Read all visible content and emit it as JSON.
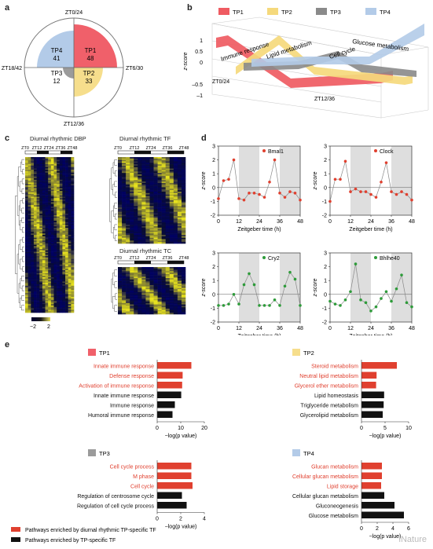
{
  "panels": {
    "a": "a",
    "b": "b",
    "c": "c",
    "d": "d",
    "e": "e"
  },
  "panel_a": {
    "clock_labels": {
      "top": "ZT0/24",
      "right": "ZT6/30",
      "bottom": "ZT12/36",
      "left": "ZT18/42"
    },
    "sectors": [
      {
        "name": "TP1",
        "value": "48",
        "color": "#f0606a"
      },
      {
        "name": "TP2",
        "value": "33",
        "color": "#f6de8c"
      },
      {
        "name": "TP3",
        "value": "12",
        "color": "#9b9b9b"
      },
      {
        "name": "TP4",
        "value": "41",
        "color": "#b3cbe8"
      }
    ]
  },
  "panel_b": {
    "legend": [
      {
        "name": "TP1",
        "color": "#ef5b62"
      },
      {
        "name": "TP2",
        "color": "#f5d97c"
      },
      {
        "name": "TP3",
        "color": "#8a8a8a"
      },
      {
        "name": "TP4",
        "color": "#b3cbe8"
      }
    ],
    "ylabel": "z-score",
    "yticks": [
      "1",
      "0.5",
      "0",
      "–0.5",
      "–1"
    ],
    "x_labels": [
      "ZT0/24",
      "ZT12/36"
    ],
    "ribbon_labels": [
      "Immune response",
      "Lipid metabolism",
      "Cell cycle",
      "Glucose metabolism"
    ]
  },
  "panel_c": {
    "heatmaps": [
      {
        "title": "Diurnal rhythmic DBP",
        "zts": [
          "ZT0",
          "ZT12",
          "ZT24",
          "ZT36",
          "ZT48"
        ]
      },
      {
        "title": "Diurnal rhythmic TF",
        "zts": [
          "ZT0",
          "ZT12",
          "ZT24",
          "ZT36",
          "ZT48"
        ]
      },
      {
        "title": "Diurnal rhythmic TC",
        "zts": [
          "ZT0",
          "ZT12",
          "ZT24",
          "ZT36",
          "ZT48"
        ]
      }
    ],
    "colorbar": {
      "min": "−2",
      "max": "2"
    }
  },
  "chart_data": [
    {
      "type": "line",
      "title": "Bmal1",
      "color": "#e0402f",
      "xlabel": "Zeitgeber time (h)",
      "ylabel": "z-score",
      "x": [
        0,
        3,
        6,
        9,
        12,
        15,
        18,
        21,
        24,
        27,
        30,
        33,
        36,
        39,
        42,
        45,
        48
      ],
      "y": [
        -0.8,
        0.5,
        0.6,
        2.0,
        -0.8,
        -0.9,
        -0.4,
        -0.4,
        -0.5,
        -0.7,
        0.4,
        2.0,
        -0.4,
        -0.7,
        -0.3,
        -0.4,
        -0.9
      ],
      "xlim": [
        0,
        48
      ],
      "ylim": [
        -2,
        3
      ],
      "xticks": [
        0,
        12,
        24,
        36,
        48
      ],
      "yticks": [
        -2,
        -1,
        0,
        1,
        2,
        3
      ],
      "shaded": [
        [
          12,
          24
        ],
        [
          36,
          48
        ]
      ]
    },
    {
      "type": "line",
      "title": "Clock",
      "color": "#e0402f",
      "xlabel": "Zeitgeber time (h)",
      "ylabel": "z-score",
      "x": [
        0,
        3,
        6,
        9,
        12,
        15,
        18,
        21,
        24,
        27,
        30,
        33,
        36,
        39,
        42,
        45,
        48
      ],
      "y": [
        -1.0,
        0.6,
        0.6,
        1.9,
        -0.3,
        -0.1,
        -0.3,
        -0.3,
        -0.5,
        -0.7,
        0.4,
        1.8,
        -0.3,
        -0.5,
        -0.3,
        -0.5,
        -0.9
      ],
      "xlim": [
        0,
        48
      ],
      "ylim": [
        -2,
        3
      ],
      "xticks": [
        0,
        12,
        24,
        36,
        48
      ],
      "yticks": [
        -2,
        -1,
        0,
        1,
        2,
        3
      ],
      "shaded": [
        [
          12,
          24
        ],
        [
          36,
          48
        ]
      ]
    },
    {
      "type": "line",
      "title": "Cry2",
      "color": "#2e9b3a",
      "xlabel": "Zeitgeber time (h)",
      "ylabel": "z-score",
      "x": [
        0,
        3,
        6,
        9,
        12,
        15,
        18,
        21,
        24,
        27,
        30,
        33,
        36,
        39,
        42,
        45,
        48
      ],
      "y": [
        -0.8,
        -0.8,
        -0.7,
        0.0,
        -0.7,
        0.7,
        1.5,
        0.7,
        -0.8,
        -0.8,
        -0.8,
        -0.4,
        -0.8,
        0.6,
        1.6,
        1.1,
        -0.8
      ],
      "xlim": [
        0,
        48
      ],
      "ylim": [
        -2,
        3
      ],
      "xticks": [
        0,
        12,
        24,
        36,
        48
      ],
      "yticks": [
        -2,
        -1,
        0,
        1,
        2,
        3
      ],
      "shaded": [
        [
          12,
          24
        ],
        [
          36,
          48
        ]
      ]
    },
    {
      "type": "line",
      "title": "Bhlhe40",
      "color": "#2e9b3a",
      "xlabel": "Zeitgeber time (h)",
      "ylabel": "z-score",
      "x": [
        0,
        3,
        6,
        9,
        12,
        15,
        18,
        21,
        24,
        27,
        30,
        33,
        36,
        39,
        42,
        45,
        48
      ],
      "y": [
        -0.5,
        -0.7,
        -0.8,
        -0.4,
        0.2,
        2.2,
        -0.4,
        -0.6,
        -1.2,
        -0.9,
        -0.3,
        0.2,
        -0.5,
        0.4,
        1.4,
        -0.6,
        -0.9
      ],
      "xlim": [
        0,
        48
      ],
      "ylim": [
        -2,
        3
      ],
      "xticks": [
        0,
        12,
        24,
        36,
        48
      ],
      "yticks": [
        -2,
        -1,
        0,
        1,
        2,
        3
      ],
      "shaded": [
        [
          12,
          24
        ],
        [
          36,
          48
        ]
      ]
    },
    {
      "type": "bar",
      "title": "TP1",
      "title_color": "#f0606a",
      "orientation": "horizontal",
      "xlabel": "−log(p value)",
      "categories": [
        "Innate immune response",
        "Defense response",
        "Activation of immune response",
        "Innate immune response",
        "Immune response",
        "Humoral immune response"
      ],
      "values": [
        14.5,
        10.8,
        10.6,
        10.2,
        7.5,
        6.5
      ],
      "enriched_by": [
        "TF",
        "TF",
        "TF",
        "TP",
        "TP",
        "TP"
      ],
      "xlim": [
        0,
        20
      ],
      "xticks": [
        0,
        10,
        20
      ]
    },
    {
      "type": "bar",
      "title": "TP2",
      "title_color": "#f6de8c",
      "orientation": "horizontal",
      "xlabel": "−log(p value)",
      "categories": [
        "Steroid metabolism",
        "Neutral lipid metabolism",
        "Glycerol ether metabolism",
        "Lipid homeostasis",
        "Triglyceride metabolism",
        "Glycerolipid metabolism"
      ],
      "values": [
        7.5,
        3.2,
        3.1,
        4.8,
        4.7,
        4.5
      ],
      "enriched_by": [
        "TF",
        "TF",
        "TF",
        "TP",
        "TP",
        "TP"
      ],
      "xlim": [
        0,
        10
      ],
      "xticks": [
        0,
        5,
        10
      ]
    },
    {
      "type": "bar",
      "title": "TP3",
      "title_color": "#9b9b9b",
      "orientation": "horizontal",
      "xlabel": "−log(p value)",
      "categories": [
        "Cell cycle process",
        "M phase",
        "Cell cycle",
        "Regulation of centrosome cycle",
        "Regulation of cell cycle process"
      ],
      "values": [
        2.9,
        2.9,
        3.0,
        2.1,
        2.5
      ],
      "enriched_by": [
        "TF",
        "TF",
        "TF",
        "TP",
        "TP"
      ],
      "xlim": [
        0,
        4
      ],
      "xticks": [
        0,
        2,
        4
      ]
    },
    {
      "type": "bar",
      "title": "TP4",
      "title_color": "#b3cbe8",
      "orientation": "horizontal",
      "xlabel": "−log(p value)",
      "categories": [
        "Glucan metabolism",
        "Cellular glucan metabolism",
        "Lipid storage",
        "Cellular glucan metabolism",
        "Gluconeogenesis",
        "Glucose metabolism"
      ],
      "values": [
        2.6,
        2.6,
        2.5,
        2.9,
        4.2,
        5.4
      ],
      "enriched_by": [
        "TF",
        "TF",
        "TF",
        "TP",
        "TP",
        "TP"
      ],
      "xlim": [
        0,
        6
      ],
      "xticks": [
        0,
        2,
        4,
        6
      ]
    }
  ],
  "legend_e": [
    {
      "label": "Pathways enriched by diurnal rhythmic TP-specific TF",
      "color": "#e0402f"
    },
    {
      "label": "Pathways enriched by TP-specific TF",
      "color": "#111111"
    }
  ],
  "watermark": "iNature"
}
